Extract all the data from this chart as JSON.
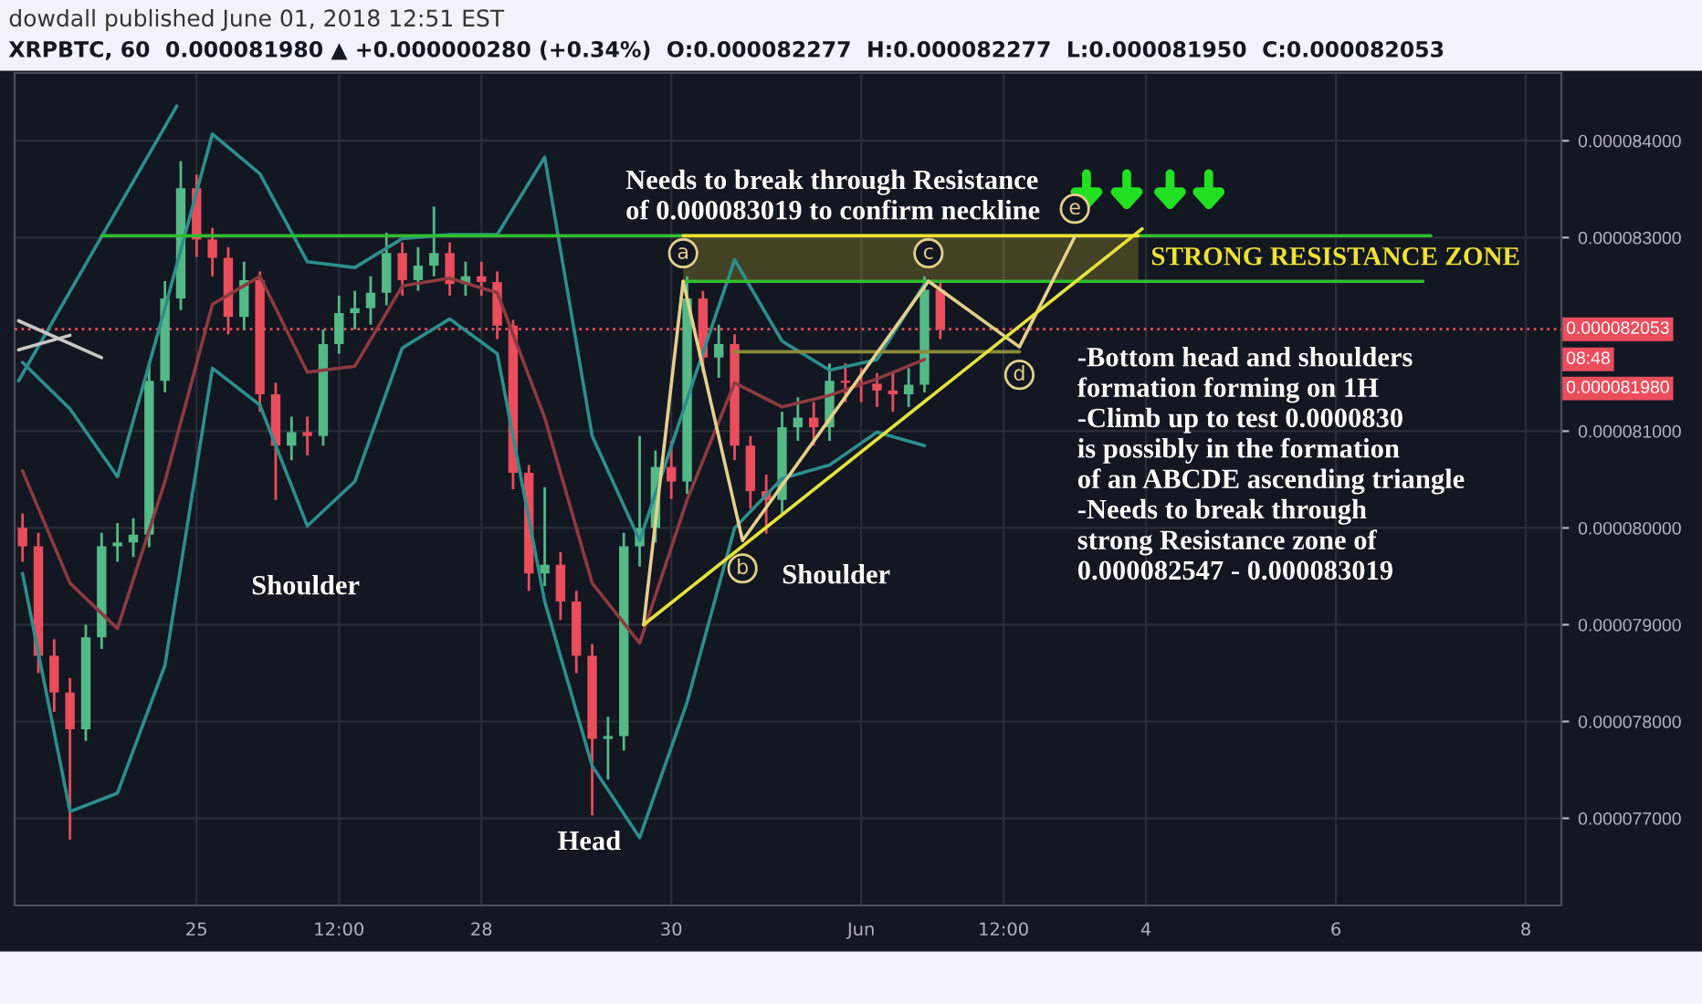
{
  "chart_data": {
    "type": "candlestick",
    "subtitle": "dowdall published June 01, 2018 12:51 EST",
    "title": "XRPBTC, 60  0.000081980 ▲ +0.000000280 (+0.34%)  O:0.000082277  H:0.000082277  L:0.000081950  C:0.000082053",
    "x": [
      "2018-05-23T04:00",
      "2018-05-23T08:00",
      "2018-05-23T12:00",
      "2018-05-23T16:00",
      "2018-05-23T20:00",
      "2018-05-24T00:00",
      "2018-05-24T04:00",
      "2018-05-24T08:00",
      "2018-05-24T12:00",
      "2018-05-24T16:00",
      "2018-05-24T20:00",
      "2018-05-25T00:00",
      "2018-05-25T04:00",
      "2018-05-25T08:00",
      "2018-05-25T12:00",
      "2018-05-25T16:00",
      "2018-05-25T20:00",
      "2018-05-26T00:00",
      "2018-05-26T04:00",
      "2018-05-26T08:00",
      "2018-05-26T12:00",
      "2018-05-26T16:00",
      "2018-05-26T20:00",
      "2018-05-27T00:00",
      "2018-05-27T04:00",
      "2018-05-27T08:00",
      "2018-05-27T12:00",
      "2018-05-27T16:00",
      "2018-05-27T20:00",
      "2018-05-28T00:00",
      "2018-05-28T04:00",
      "2018-05-28T08:00",
      "2018-05-28T12:00",
      "2018-05-28T16:00",
      "2018-05-28T20:00",
      "2018-05-29T00:00",
      "2018-05-29T04:00",
      "2018-05-29T08:00",
      "2018-05-29T12:00",
      "2018-05-29T16:00",
      "2018-05-29T20:00",
      "2018-05-30T00:00",
      "2018-05-30T04:00",
      "2018-05-30T08:00",
      "2018-05-30T12:00",
      "2018-05-30T16:00",
      "2018-05-30T20:00",
      "2018-05-31T00:00",
      "2018-05-31T04:00",
      "2018-05-31T08:00",
      "2018-05-31T12:00",
      "2018-05-31T16:00",
      "2018-05-31T20:00",
      "2018-06-01T00:00",
      "2018-06-01T04:00",
      "2018-06-01T08:00",
      "2018-06-01T12:00",
      "2018-06-01T16:00",
      "2018-06-01T20:00"
    ],
    "ohlc": [
      [
        8e-05,
        8.015e-05,
        7.965e-05,
        7.981e-05
      ],
      [
        7.981e-05,
        7.995e-05,
        7.85e-05,
        7.868e-05
      ],
      [
        7.868e-05,
        7.885e-05,
        7.81e-05,
        7.83e-05
      ],
      [
        7.83e-05,
        7.845e-05,
        7.678e-05,
        7.792e-05
      ],
      [
        7.792e-05,
        7.9e-05,
        7.78e-05,
        7.887e-05
      ],
      [
        7.887e-05,
        7.995e-05,
        7.875e-05,
        7.981e-05
      ],
      [
        7.981e-05,
        8.005e-05,
        7.965e-05,
        7.985e-05
      ],
      [
        7.985e-05,
        8.01e-05,
        7.97e-05,
        7.993e-05
      ],
      [
        7.993e-05,
        8.17e-05,
        7.98e-05,
        8.152e-05
      ],
      [
        8.152e-05,
        8.255e-05,
        8.14e-05,
        8.237e-05
      ],
      [
        8.237e-05,
        8.379e-05,
        8.225e-05,
        8.351e-05
      ],
      [
        8.351e-05,
        8.365e-05,
        8.28e-05,
        8.298e-05
      ],
      [
        8.298e-05,
        8.31e-05,
        8.26e-05,
        8.279e-05
      ],
      [
        8.279e-05,
        8.29e-05,
        8.2e-05,
        8.218e-05
      ],
      [
        8.218e-05,
        8.275e-05,
        8.205e-05,
        8.256e-05
      ],
      [
        8.256e-05,
        8.265e-05,
        8.12e-05,
        8.138e-05
      ],
      [
        8.138e-05,
        8.15e-05,
        8.029e-05,
        8.085e-05
      ],
      [
        8.085e-05,
        8.115e-05,
        8.07e-05,
        8.099e-05
      ],
      [
        8.099e-05,
        8.115e-05,
        8.075e-05,
        8.095e-05
      ],
      [
        8.095e-05,
        8.205e-05,
        8.085e-05,
        8.19e-05
      ],
      [
        8.19e-05,
        8.24e-05,
        8.18e-05,
        8.222e-05
      ],
      [
        8.222e-05,
        8.245e-05,
        8.205e-05,
        8.227e-05
      ],
      [
        8.227e-05,
        8.26e-05,
        8.21e-05,
        8.243e-05
      ],
      [
        8.243e-05,
        8.305e-05,
        8.23e-05,
        8.284e-05
      ],
      [
        8.284e-05,
        8.295e-05,
        8.24e-05,
        8.256e-05
      ],
      [
        8.256e-05,
        8.29e-05,
        8.245e-05,
        8.271e-05
      ],
      [
        8.271e-05,
        8.332e-05,
        8.26e-05,
        8.284e-05
      ],
      [
        8.284e-05,
        8.295e-05,
        8.24e-05,
        8.252e-05
      ],
      [
        8.252e-05,
        8.275e-05,
        8.24e-05,
        8.26e-05
      ],
      [
        8.26e-05,
        8.275e-05,
        8.24e-05,
        8.254e-05
      ],
      [
        8.254e-05,
        8.265e-05,
        8.195e-05,
        8.209e-05
      ],
      [
        8.209e-05,
        8.215e-05,
        8.04e-05,
        8.057e-05
      ],
      [
        8.057e-05,
        8.065e-05,
        7.935e-05,
        7.953e-05
      ],
      [
        7.953e-05,
        8.042e-05,
        7.94e-05,
        7.962e-05
      ],
      [
        7.962e-05,
        7.975e-05,
        7.905e-05,
        7.924e-05
      ],
      [
        7.924e-05,
        7.935e-05,
        7.85e-05,
        7.868e-05
      ],
      [
        7.868e-05,
        7.88e-05,
        7.703e-05,
        7.782e-05
      ],
      [
        7.782e-05,
        7.805e-05,
        7.74e-05,
        7.785e-05
      ],
      [
        7.785e-05,
        7.995e-05,
        7.77e-05,
        7.981e-05
      ],
      [
        7.981e-05,
        8.095e-05,
        7.96e-05,
        8e-05
      ],
      [
        8e-05,
        8.08e-05,
        7.985e-05,
        8.063e-05
      ],
      [
        8.063e-05,
        8.09e-05,
        8.03e-05,
        8.048e-05
      ],
      [
        8.048e-05,
        8.26e-05,
        8.035e-05,
        8.237e-05
      ],
      [
        8.237e-05,
        8.245e-05,
        8.16e-05,
        8.176e-05
      ],
      [
        8.176e-05,
        8.21e-05,
        8.155e-05,
        8.19e-05
      ],
      [
        8.19e-05,
        8.2e-05,
        8.07e-05,
        8.085e-05
      ],
      [
        8.085e-05,
        8.095e-05,
        8.02e-05,
        8.038e-05
      ],
      [
        8.038e-05,
        8.055e-05,
        7.994e-05,
        8.029e-05
      ],
      [
        8.029e-05,
        8.12e-05,
        8.015e-05,
        8.104e-05
      ],
      [
        8.104e-05,
        8.135e-05,
        8.09e-05,
        8.114e-05
      ],
      [
        8.114e-05,
        8.13e-05,
        8.085e-05,
        8.104e-05
      ],
      [
        8.104e-05,
        8.17e-05,
        8.09e-05,
        8.152e-05
      ],
      [
        8.152e-05,
        8.17e-05,
        8.13e-05,
        8.15e-05
      ],
      [
        8.15e-05,
        8.165e-05,
        8.13e-05,
        8.149e-05
      ],
      [
        8.149e-05,
        8.16e-05,
        8.125e-05,
        8.142e-05
      ],
      [
        8.142e-05,
        8.16e-05,
        8.12e-05,
        8.138e-05
      ],
      [
        8.138e-05,
        8.165e-05,
        8.125e-05,
        8.148e-05
      ],
      [
        8.148e-05,
        8.26e-05,
        8.14e-05,
        8.246e-05
      ],
      [
        8.246e-05,
        8.255e-05,
        8.195e-05,
        8.2053e-05
      ]
    ],
    "colors": [
      "#eb4d5c",
      "#eb4d5c",
      "#eb4d5c",
      "#eb4d5c",
      "#53b987",
      "#53b987",
      "#53b987",
      "#53b987",
      "#53b987",
      "#53b987",
      "#53b987",
      "#eb4d5c",
      "#eb4d5c",
      "#eb4d5c",
      "#53b987",
      "#eb4d5c",
      "#eb4d5c",
      "#53b987",
      "#eb4d5c",
      "#53b987",
      "#53b987",
      "#53b987",
      "#53b987",
      "#53b987",
      "#eb4d5c",
      "#53b987",
      "#53b987",
      "#eb4d5c",
      "#53b987",
      "#eb4d5c",
      "#eb4d5c",
      "#eb4d5c",
      "#eb4d5c",
      "#53b987",
      "#eb4d5c",
      "#eb4d5c",
      "#eb4d5c",
      "#53b987",
      "#53b987",
      "#53b987",
      "#53b987",
      "#eb4d5c",
      "#53b987",
      "#eb4d5c",
      "#53b987",
      "#eb4d5c",
      "#eb4d5c",
      "#eb4d5c",
      "#53b987",
      "#53b987",
      "#eb4d5c",
      "#53b987",
      "#eb4d5c",
      "#eb4d5c",
      "#eb4d5c",
      "#eb4d5c",
      "#53b987",
      "#53b987",
      "#eb4d5c"
    ],
    "series": [
      {
        "type": "line",
        "color": "#2c8f8c",
        "x": [
          "2018-05-23T04:00",
          "2018-05-23T16:00",
          "2018-05-24T04:00",
          "2018-05-24T16:00",
          "2018-05-25T04:00",
          "2018-05-25T16:00",
          "2018-05-26T04:00",
          "2018-05-26T16:00",
          "2018-05-27T04:00",
          "2018-05-27T16:00",
          "2018-05-28T04:00",
          "2018-05-28T16:00",
          "2018-05-29T04:00",
          "2018-05-29T16:00",
          "2018-05-30T04:00",
          "2018-05-30T16:00",
          "2018-05-31T04:00",
          "2018-05-31T16:00",
          "2018-06-01T04:00",
          "2018-06-01T16:00"
        ],
        "values": [
          8.171e-05,
          8.123e-05,
          8.053e-05,
          8.227e-05,
          8.407e-05,
          8.366e-05,
          8.275e-05,
          8.269e-05,
          8.299e-05,
          8.303e-05,
          8.303e-05,
          8.383e-05,
          8.095e-05,
          7.987e-05,
          8.133e-05,
          8.277e-05,
          8.193e-05,
          8.163e-05,
          8.174e-05,
          8.252e-05
        ]
      },
      {
        "type": "line",
        "color": "#2c8f8c",
        "x": [
          "2018-05-23T04:00",
          "2018-05-23T16:00",
          "2018-05-24T04:00",
          "2018-05-24T16:00",
          "2018-05-25T04:00",
          "2018-05-25T16:00",
          "2018-05-26T04:00",
          "2018-05-26T16:00",
          "2018-05-27T04:00",
          "2018-05-27T16:00",
          "2018-05-28T04:00",
          "2018-05-28T16:00",
          "2018-05-29T04:00",
          "2018-05-29T16:00",
          "2018-05-30T04:00",
          "2018-05-30T16:00",
          "2018-05-31T04:00",
          "2018-05-31T16:00",
          "2018-06-01T04:00",
          "2018-06-01T16:00"
        ],
        "values": [
          7.953e-05,
          7.707e-05,
          7.726e-05,
          7.858e-05,
          8.165e-05,
          8.127e-05,
          8.002e-05,
          8.048e-05,
          8.186e-05,
          8.216e-05,
          8.18e-05,
          7.924e-05,
          7.754e-05,
          7.68e-05,
          7.82e-05,
          8e-05,
          8.051e-05,
          8.065e-05,
          8.099e-05,
          8.085e-05
        ]
      },
      {
        "type": "line",
        "color": "#8e3a3f",
        "x": [
          "2018-05-23T04:00",
          "2018-05-23T16:00",
          "2018-05-24T04:00",
          "2018-05-24T16:00",
          "2018-05-25T04:00",
          "2018-05-25T16:00",
          "2018-05-26T04:00",
          "2018-05-26T16:00",
          "2018-05-27T04:00",
          "2018-05-27T16:00",
          "2018-05-28T04:00",
          "2018-05-28T16:00",
          "2018-05-29T04:00",
          "2018-05-29T16:00",
          "2018-05-30T04:00",
          "2018-05-30T16:00",
          "2018-05-31T04:00",
          "2018-05-31T16:00",
          "2018-06-01T04:00",
          "2018-06-01T16:00"
        ],
        "values": [
          8.059e-05,
          7.943e-05,
          7.896e-05,
          8.048e-05,
          8.231e-05,
          8.26e-05,
          8.161e-05,
          8.167e-05,
          8.25e-05,
          8.258e-05,
          8.243e-05,
          8.114e-05,
          7.943e-05,
          7.881e-05,
          8.029e-05,
          8.15e-05,
          8.125e-05,
          8.137e-05,
          8.154e-05,
          8.174e-05
        ]
      },
      {
        "type": "line",
        "color": "#2c8f8c",
        "x": [
          "2018-05-23T03:00",
          "2018-05-24T19:00"
        ],
        "values": [
          8.152e-05,
          8.436e-05
        ]
      },
      {
        "type": "line",
        "color": "#c8c8c8",
        "x": [
          "2018-05-23T03:00",
          "2018-05-24T00:00"
        ],
        "values": [
          8.214e-05,
          8.176e-05
        ]
      },
      {
        "type": "line",
        "color": "#c8c8c8",
        "x": [
          "2018-05-23T03:00",
          "2018-05-23T16:00"
        ],
        "values": [
          8.184e-05,
          8.199e-05
        ]
      },
      {
        "type": "line",
        "color": "#2fbf2f",
        "x": [
          "2018-05-24T00:00",
          "2018-06-07T00:00"
        ],
        "values": [
          8.3019e-05,
          8.3019e-05
        ]
      },
      {
        "type": "line",
        "color": "#2fbf2f",
        "x": [
          "2018-05-30T03:00",
          "2018-06-06T22:00"
        ],
        "values": [
          8.2547e-05,
          8.2547e-05
        ]
      },
      {
        "type": "line",
        "name": "STRONG RESISTANCE ZONE",
        "color": "#f0e130",
        "x": [
          "2018-05-30T03:00",
          "2018-06-03T22:00"
        ],
        "values": [
          8.3019e-05,
          8.3019e-05
        ],
        "lower": [
          8.2547e-05,
          8.2547e-05
        ],
        "upper": [
          8.3019e-05,
          8.3019e-05
        ]
      },
      {
        "type": "line",
        "color": "#8a8a3a",
        "x": [
          "2018-05-30T16:00",
          "2018-06-02T16:00"
        ],
        "values": [
          8.182e-05,
          8.182e-05
        ]
      },
      {
        "type": "line",
        "color": "#e5d08a",
        "x": [
          "2018-05-29T17:00",
          "2018-05-30T03:00",
          "2018-05-30T18:00",
          "2018-06-01T17:00",
          "2018-06-02T16:00",
          "2018-06-03T06:00"
        ],
        "values": [
          7.9e-05,
          8.255e-05,
          7.987e-05,
          8.255e-05,
          8.187e-05,
          8.301e-05
        ],
        "value_labels": [
          null,
          "a",
          "b",
          "c",
          "d",
          "e"
        ]
      },
      {
        "type": "line",
        "color": "#e6e23a",
        "x": [
          "2018-05-29T17:00",
          "2018-06-03T23:00"
        ],
        "values": [
          7.9e-05,
          8.309e-05
        ]
      }
    ],
    "ref_lines": [
      {
        "axis": "y",
        "value": 8.2053e-05,
        "label": "0.000082053",
        "color": "#eb4d5c",
        "line_style": "dotted"
      }
    ],
    "annotations": [
      "Shoulder",
      "Head",
      "Shoulder",
      "Needs to break through Resistance\nof 0.000083019 to confirm neckline",
      "-Bottom head and shoulders\nformation forming on 1H\n-Climb up to test 0.0000830\nis possibly in the formation\nof an ABCDE ascending triangle\n-Needs to break through\nstrong Resistance zone of\n0.000082547 - 0.000083019",
      "08:48",
      "0.000081980"
    ],
    "xlim": [
      "2018-05-23T02:00",
      "2018-06-08T09:00"
    ],
    "xticks": [
      {
        "value": "2018-05-25",
        "label": "25"
      },
      {
        "value": "2018-05-26T12:00",
        "label": "12:00"
      },
      {
        "value": "2018-05-28",
        "label": "28"
      },
      {
        "value": "2018-05-30",
        "label": "30"
      },
      {
        "value": "2018-06-01",
        "label": "Jun"
      },
      {
        "value": "2018-06-02T12:00",
        "label": "12:00"
      },
      {
        "value": "2018-06-04",
        "label": "4"
      },
      {
        "value": "2018-06-06",
        "label": "6"
      },
      {
        "value": "2018-06-08",
        "label": "8"
      }
    ],
    "ylim": [
      7.61e-05,
      8.47e-05
    ],
    "yticks": [
      {
        "value": 7.7e-05,
        "label": "0.000077000"
      },
      {
        "value": 7.8e-05,
        "label": "0.000078000"
      },
      {
        "value": 7.9e-05,
        "label": "0.000079000"
      },
      {
        "value": 8e-05,
        "label": "0.000080000"
      },
      {
        "value": 8.1e-05,
        "label": "0.000081000"
      },
      {
        "value": 8.3e-05,
        "label": "0.000083000"
      },
      {
        "value": 8.4e-05,
        "label": "0.000084000"
      }
    ],
    "grid": true
  }
}
